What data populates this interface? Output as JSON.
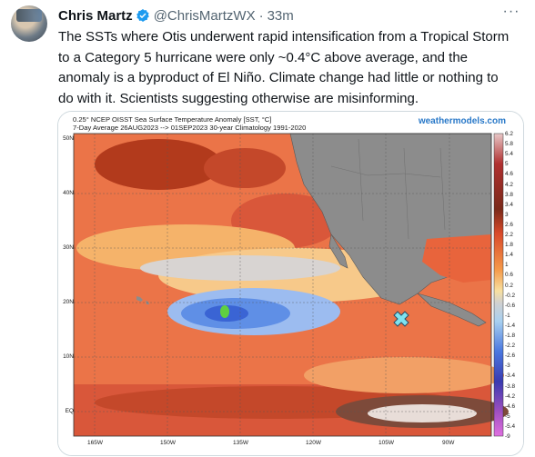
{
  "tweet": {
    "author_name": "Chris Martz",
    "handle": "@ChrisMartzWX",
    "separator": "·",
    "time": "33m",
    "more_label": "···",
    "text": "The SSTs where Otis underwent rapid intensification from a Tropical Storm to a Category 5 hurricane were only ~0.4°C above average, and the anomaly is a byproduct of El Niño. Climate change had little or nothing to do with it. Scientists suggesting otherwise are misinforming."
  },
  "map": {
    "title_line1": "0.25° NCEP OISST Sea Surface Temperature Anomaly [SST, °C]",
    "title_line2": "7-Day Average 26AUG2023 --> 01SEP2023   30-year Climatology 1991-2020",
    "brand": "weathermodels.com",
    "lat_labels": [
      "50N",
      "40N",
      "30N",
      "20N",
      "10N",
      "EQ"
    ],
    "lon_labels": [
      "165W",
      "150W",
      "135W",
      "120W",
      "105W",
      "90W"
    ],
    "colorbar_labels": [
      "6.2",
      "5.8",
      "5.4",
      "5",
      "4.6",
      "4.2",
      "3.8",
      "3.4",
      "3",
      "2.6",
      "2.2",
      "1.8",
      "1.4",
      "1",
      "0.6",
      "0.2",
      "-0.2",
      "-0.6",
      "-1",
      "-1.4",
      "-1.8",
      "-2.2",
      "-2.6",
      "-3",
      "-3.4",
      "-3.8",
      "-4.2",
      "-4.6",
      "-5",
      "-5.4",
      "-9"
    ],
    "marker_icon": "x-marker-icon",
    "colors": {
      "ocean_warm": "#e8643c",
      "ocean_mild": "#f5b36a",
      "ocean_cool": "#78a8f0",
      "land": "#8c8c8c",
      "marker": "#7fe3f0",
      "verified": "#1d9bf0"
    }
  }
}
